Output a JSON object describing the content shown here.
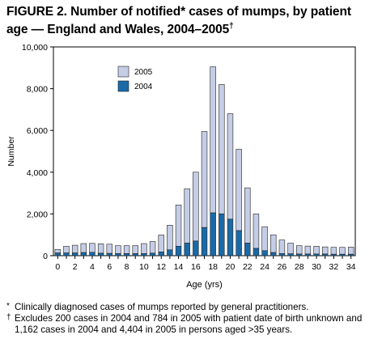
{
  "title": "FIGURE 2. Number of notified* cases of mumps, by patient age — England and Wales, 2004–2005",
  "title_mark": "†",
  "chart_data": {
    "type": "bar",
    "stacked": true,
    "xlabel": "Age (yrs)",
    "ylabel": "Number",
    "ylim": [
      0,
      10000
    ],
    "yticks": [
      "0",
      "2,000",
      "4,000",
      "6,000",
      "8,000",
      "10,000"
    ],
    "ytick_values": [
      0,
      2000,
      4000,
      6000,
      8000,
      10000
    ],
    "categories": [
      "0",
      "1",
      "2",
      "3",
      "4",
      "5",
      "6",
      "7",
      "8",
      "9",
      "10",
      "11",
      "12",
      "13",
      "14",
      "15",
      "16",
      "17",
      "18",
      "19",
      "20",
      "21",
      "22",
      "23",
      "24",
      "25",
      "26",
      "27",
      "28",
      "29",
      "30",
      "31",
      "32",
      "33",
      "34"
    ],
    "xtick_labels": [
      "0",
      "",
      "2",
      "",
      "4",
      "",
      "6",
      "",
      "8",
      "",
      "10",
      "",
      "12",
      "",
      "14",
      "",
      "16",
      "",
      "18",
      "",
      "20",
      "",
      "22",
      "",
      "24",
      "",
      "26",
      "",
      "28",
      "",
      "30",
      "",
      "32",
      "",
      "34"
    ],
    "legend_position": "top-left",
    "series": [
      {
        "name": "2004",
        "color": "#1a6aa8",
        "values": [
          130,
          130,
          130,
          150,
          160,
          120,
          110,
          100,
          100,
          100,
          100,
          120,
          180,
          280,
          450,
          600,
          700,
          1350,
          2050,
          2000,
          1750,
          1200,
          600,
          350,
          240,
          150,
          100,
          90,
          80,
          80,
          80,
          80,
          70,
          70,
          70
        ]
      },
      {
        "name": "2005",
        "color": "#c5cde6",
        "values": [
          170,
          320,
          370,
          430,
          430,
          450,
          440,
          380,
          380,
          380,
          480,
          560,
          810,
          1180,
          1980,
          2600,
          3300,
          4600,
          7000,
          6200,
          5050,
          3900,
          2650,
          1650,
          1150,
          850,
          650,
          510,
          400,
          380,
          370,
          340,
          330,
          330,
          340
        ]
      }
    ],
    "grid": false
  },
  "footnotes": [
    {
      "mark": "*",
      "text": "Clinically diagnosed cases of mumps reported by general practitioners."
    },
    {
      "mark": "†",
      "text": "Excludes 200 cases in 2004 and 784 in 2005 with patient date of birth unknown and 1,162 cases in 2004 and 4,404 in 2005 in persons aged >35 years."
    }
  ]
}
